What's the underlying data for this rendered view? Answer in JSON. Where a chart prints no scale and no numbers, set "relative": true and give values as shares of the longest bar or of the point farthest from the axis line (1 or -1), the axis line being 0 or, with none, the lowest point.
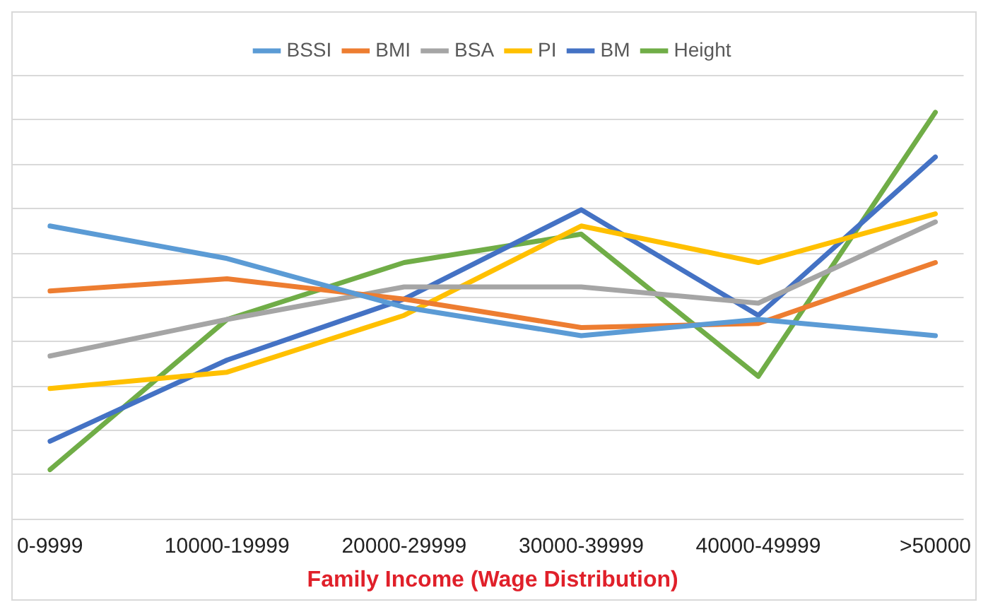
{
  "chart_data": {
    "type": "line",
    "relative": true,
    "xlabel": "Family Income (Wage Distribution)",
    "categories": [
      "0-9999",
      "10000-19999",
      "20000-29999",
      "30000-39999",
      "40000-49999",
      ">50000"
    ],
    "grid": "y",
    "legend": "top",
    "series": [
      {
        "name": "BSSI",
        "color": "#5b9bd5",
        "values": [
          0.72,
          0.64,
          0.52,
          0.45,
          0.49,
          0.45
        ]
      },
      {
        "name": "BMI",
        "color": "#ed7d31",
        "values": [
          0.56,
          0.59,
          0.54,
          0.47,
          0.48,
          0.63
        ]
      },
      {
        "name": "BSA",
        "color": "#a5a5a5",
        "values": [
          0.4,
          0.49,
          0.57,
          0.57,
          0.53,
          0.73
        ]
      },
      {
        "name": "PI",
        "color": "#ffc000",
        "values": [
          0.32,
          0.36,
          0.5,
          0.72,
          0.63,
          0.75
        ]
      },
      {
        "name": "BM",
        "color": "#4472c4",
        "values": [
          0.19,
          0.39,
          0.54,
          0.76,
          0.5,
          0.89
        ]
      },
      {
        "name": "Height",
        "color": "#70ad47",
        "values": [
          0.12,
          0.49,
          0.63,
          0.7,
          0.35,
          1
        ]
      }
    ]
  }
}
